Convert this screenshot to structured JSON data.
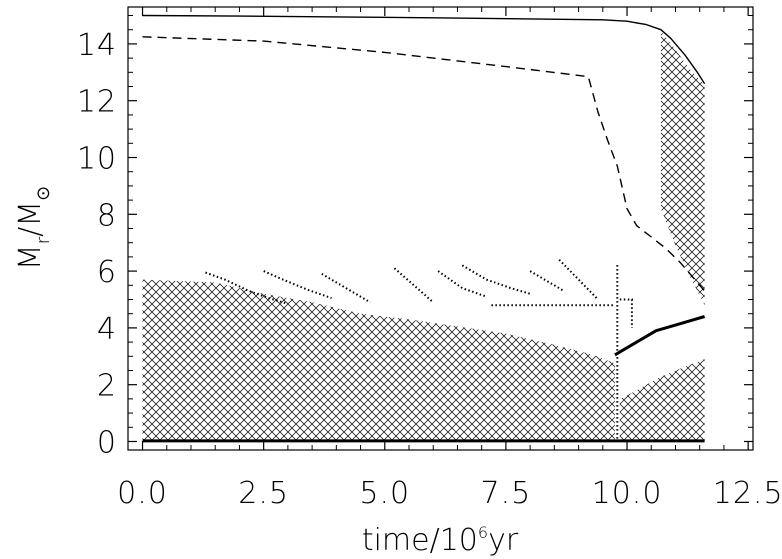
{
  "chart_data": {
    "type": "line",
    "title": "",
    "xlabel": "time/10",
    "xlabel_exp": "6",
    "xlabel_unit": "yr",
    "ylabel_main": "M",
    "ylabel_sub": "r",
    "ylabel_slash": "/M",
    "ylabel_sun": "⊙",
    "xlim": [
      -0.3,
      12.6
    ],
    "ylim": [
      -0.3,
      15.3
    ],
    "x_ticks": [
      "0.0",
      "2.5",
      "5.0",
      "7.5",
      "10.0",
      "12.5"
    ],
    "y_ticks": [
      "0",
      "2",
      "4",
      "6",
      "8",
      "10",
      "12",
      "14"
    ],
    "grid": false,
    "series": [
      {
        "style": "solid",
        "x": [
          0.0,
          2.0,
          4.0,
          6.0,
          8.0,
          9.5,
          10.0,
          10.4,
          10.7,
          10.9,
          11.2,
          11.45,
          11.6
        ],
        "y": [
          15.0,
          14.98,
          14.95,
          14.92,
          14.88,
          14.85,
          14.8,
          14.68,
          14.5,
          14.2,
          13.6,
          13.0,
          12.6
        ]
      },
      {
        "style": "dashed",
        "x": [
          0.0,
          2.5,
          5.0,
          7.5,
          9.2,
          9.4,
          9.6,
          9.8,
          10.0,
          10.2,
          10.5,
          10.8,
          11.1,
          11.4,
          11.6
        ],
        "y": [
          14.25,
          14.1,
          13.7,
          13.2,
          12.85,
          11.6,
          10.6,
          9.7,
          8.2,
          7.6,
          7.2,
          6.8,
          6.3,
          5.7,
          5.3
        ]
      },
      {
        "style": "thick",
        "x": [
          0.0,
          2.5,
          5.0,
          7.5,
          9.0,
          10.0,
          11.0,
          11.6
        ],
        "y": [
          0.02,
          0.02,
          0.02,
          0.02,
          0.02,
          0.02,
          0.02,
          0.02
        ]
      },
      {
        "style": "thick",
        "x": [
          9.75,
          9.9,
          10.2,
          10.6,
          11.0,
          11.3,
          11.6
        ],
        "y": [
          3.05,
          3.2,
          3.5,
          3.9,
          4.1,
          4.25,
          4.4
        ]
      }
    ],
    "hatched_regions": [
      {
        "x": [
          0.0,
          1.5,
          2.5,
          3.5,
          4.5,
          5.5,
          6.5,
          7.5,
          8.5,
          9.3,
          9.75,
          9.75,
          0.0
        ],
        "y": [
          5.7,
          5.6,
          5.2,
          4.9,
          4.5,
          4.3,
          4.05,
          3.8,
          3.4,
          3.05,
          2.75,
          0.0,
          0.0
        ]
      },
      {
        "x": [
          9.85,
          10.2,
          10.6,
          11.0,
          11.3,
          11.6,
          11.6,
          9.85
        ],
        "y": [
          1.5,
          1.8,
          2.2,
          2.5,
          2.7,
          2.9,
          0.0,
          0.0
        ]
      },
      {
        "x": [
          10.7,
          11.0,
          11.3,
          11.6,
          11.6,
          11.3,
          11.0,
          10.7
        ],
        "y": [
          14.45,
          13.8,
          13.1,
          12.55,
          4.8,
          5.8,
          6.9,
          8.2
        ]
      }
    ],
    "dotted_traces": [
      {
        "x": [
          1.3,
          1.7,
          2.2,
          2.6,
          3.0
        ],
        "y": [
          5.95,
          5.7,
          5.3,
          5.05,
          4.85
        ]
      },
      {
        "x": [
          2.5,
          2.9,
          3.4,
          3.9
        ],
        "y": [
          6.0,
          5.7,
          5.35,
          5.05
        ]
      },
      {
        "x": [
          3.7,
          4.2,
          4.7
        ],
        "y": [
          5.9,
          5.4,
          4.9
        ]
      },
      {
        "x": [
          5.2,
          5.6,
          6.0
        ],
        "y": [
          6.1,
          5.5,
          4.9
        ]
      },
      {
        "x": [
          6.1,
          6.6,
          7.1
        ],
        "y": [
          6.0,
          5.4,
          5.1
        ]
      },
      {
        "x": [
          6.6,
          7.1,
          7.6,
          8.0
        ],
        "y": [
          6.2,
          5.7,
          5.4,
          5.2
        ]
      },
      {
        "x": [
          8.0,
          8.4,
          8.7
        ],
        "y": [
          6.0,
          5.6,
          5.3
        ]
      },
      {
        "x": [
          8.6,
          9.0,
          9.4
        ],
        "y": [
          6.4,
          5.7,
          5.0
        ]
      },
      {
        "x": [
          7.2,
          9.75
        ],
        "y": [
          4.8,
          4.8
        ]
      },
      {
        "x": [
          9.8,
          9.8
        ],
        "y": [
          0.1,
          6.3
        ]
      },
      {
        "x": [
          9.85,
          10.1,
          10.1
        ],
        "y": [
          5.0,
          5.0,
          4.0
        ]
      }
    ]
  }
}
